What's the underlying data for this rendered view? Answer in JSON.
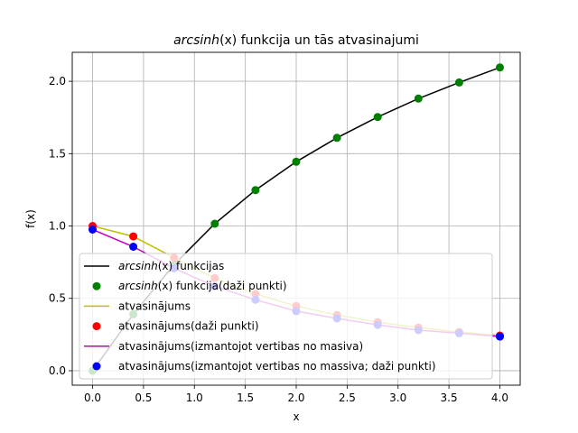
{
  "chart_data": {
    "type": "line",
    "title_italic": "arcsinh",
    "title_italic_arg": "(x)",
    "title_rest": " funkcija un tās atvasinajumi",
    "xlabel": "x",
    "ylabel": "f(x)",
    "xlim": [
      -0.2,
      4.2
    ],
    "ylim": [
      -0.1,
      2.2
    ],
    "xticks": [
      0.0,
      0.5,
      1.0,
      1.5,
      2.0,
      2.5,
      3.0,
      3.5,
      4.0
    ],
    "xtick_labels": [
      "0.0",
      "0.5",
      "1.0",
      "1.5",
      "2.0",
      "2.5",
      "3.0",
      "3.5",
      "4.0"
    ],
    "yticks": [
      0.0,
      0.5,
      1.0,
      1.5,
      2.0
    ],
    "ytick_labels": [
      "0.0",
      "0.5",
      "1.0",
      "1.5",
      "2.0"
    ],
    "grid": true,
    "legend_position": "lower-left",
    "x": [
      0.0,
      0.4,
      0.8,
      1.2,
      1.6,
      2.0,
      2.4,
      2.8,
      3.2,
      3.6,
      4.0
    ],
    "series": [
      {
        "label_italic": "arcsinh",
        "label_italic_arg": "(x)",
        "label_rest": " funkcijas",
        "kind": "line",
        "color": "#000000",
        "values": [
          0.0,
          0.39,
          0.733,
          1.016,
          1.248,
          1.444,
          1.609,
          1.753,
          1.88,
          1.992,
          2.095
        ]
      },
      {
        "label_italic": "arcsinh",
        "label_italic_arg": "(x)",
        "label_rest": " funkcija(daži punkti)",
        "kind": "points",
        "color": "#008000",
        "values": [
          0.0,
          0.39,
          0.733,
          1.016,
          1.248,
          1.444,
          1.609,
          1.753,
          1.88,
          1.992,
          2.095
        ]
      },
      {
        "label_rest": "atvasinājums",
        "kind": "line",
        "color": "#bfbf00",
        "values": [
          1.0,
          0.928,
          0.781,
          0.64,
          0.53,
          0.447,
          0.385,
          0.336,
          0.298,
          0.268,
          0.243
        ]
      },
      {
        "label_rest": "atvasinājums(daži punkti)",
        "kind": "points",
        "color": "#ff0000",
        "values": [
          1.0,
          0.928,
          0.781,
          0.64,
          0.53,
          0.447,
          0.385,
          0.336,
          0.298,
          0.268,
          0.243
        ]
      },
      {
        "label_rest": "atvasinājums(izmantojot vertibas no masiva)",
        "kind": "line",
        "color": "#bf00bf",
        "values": [
          0.975,
          0.857,
          0.708,
          0.583,
          0.49,
          0.412,
          0.361,
          0.317,
          0.28,
          0.259,
          0.236
        ]
      },
      {
        "label_rest": "atvasinājums(izmantojot vertibas no massiva; daži punkti)",
        "kind": "points",
        "color": "#0000ff",
        "values": [
          0.975,
          0.857,
          0.708,
          0.583,
          0.49,
          0.412,
          0.361,
          0.317,
          0.28,
          0.259,
          0.236
        ]
      }
    ]
  }
}
